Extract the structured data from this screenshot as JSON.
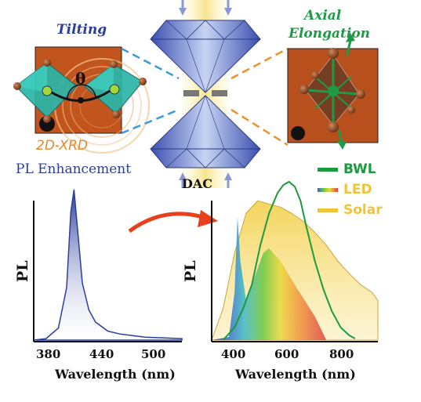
{
  "labels": {
    "tilting": "Tilting",
    "theta": "θ",
    "xrd": "2D-XRD",
    "axial_line1": "Axial",
    "axial_line2": "Elongation",
    "pl_enhancement": "PL Enhancement",
    "dac": "DAC"
  },
  "legend": [
    {
      "name": "BWL",
      "color": "#1c9a3e"
    },
    {
      "name": "LED",
      "color": "#f0c43a"
    },
    {
      "name": "Solar",
      "color": "#f0c43a"
    }
  ],
  "chart_data": [
    {
      "type": "line",
      "ylabel": "PL",
      "xlabel": "Wavelength (nm)",
      "xticks": [
        380,
        440,
        500
      ],
      "xlim": [
        365,
        545
      ],
      "series": [
        {
          "x": [
            365,
            380,
            395,
            405,
            410,
            414,
            418,
            424,
            432,
            440,
            455,
            470,
            500,
            545
          ],
          "y": [
            0.0,
            0.01,
            0.08,
            0.35,
            0.85,
            1.0,
            0.75,
            0.38,
            0.2,
            0.12,
            0.06,
            0.04,
            0.02,
            0.01
          ]
        }
      ]
    },
    {
      "type": "area",
      "ylabel": "PL",
      "xlabel": "Wavelength (nm)",
      "xticks": [
        400,
        600,
        800
      ],
      "xlim": [
        320,
        900
      ],
      "series": [
        {
          "name": "BWL",
          "x": [
            360,
            400,
            430,
            460,
            490,
            520,
            550,
            570,
            590,
            610,
            630,
            650,
            680,
            710,
            740,
            770,
            800,
            820
          ],
          "y": [
            0.0,
            0.08,
            0.2,
            0.35,
            0.6,
            0.8,
            0.93,
            0.98,
            1.0,
            0.97,
            0.88,
            0.72,
            0.5,
            0.32,
            0.18,
            0.08,
            0.03,
            0.01
          ]
        },
        {
          "name": "LED",
          "x": [
            320,
            380,
            400,
            410,
            420,
            440,
            470,
            500,
            520,
            560,
            620,
            680,
            720
          ],
          "y": [
            0.0,
            0.02,
            0.3,
            0.78,
            0.5,
            0.25,
            0.4,
            0.55,
            0.58,
            0.5,
            0.32,
            0.15,
            0.0
          ]
        },
        {
          "name": "Solar",
          "x": [
            320,
            360,
            400,
            440,
            480,
            520,
            560,
            600,
            640,
            680,
            720,
            760,
            800,
            840,
            880,
            900
          ],
          "y": [
            0.0,
            0.2,
            0.55,
            0.8,
            0.88,
            0.86,
            0.84,
            0.8,
            0.75,
            0.68,
            0.6,
            0.5,
            0.42,
            0.35,
            0.3,
            0.25
          ]
        }
      ]
    }
  ]
}
